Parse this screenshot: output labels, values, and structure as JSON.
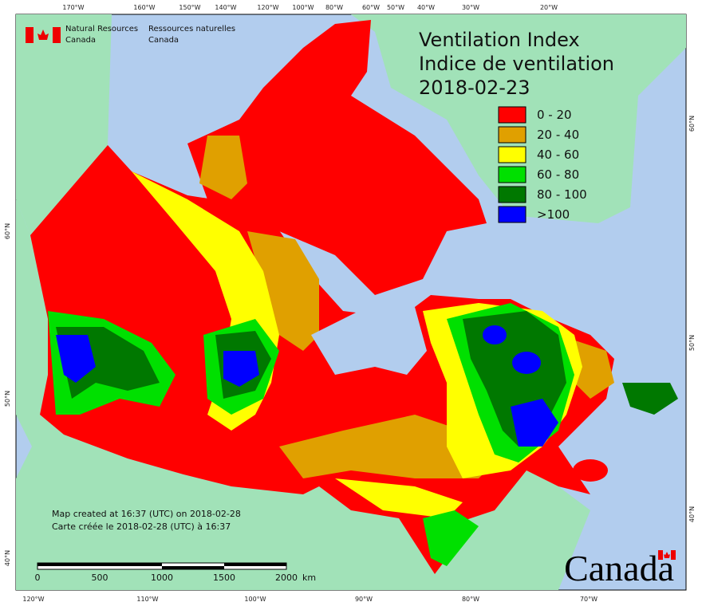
{
  "title": {
    "en": "Ventilation Index",
    "fr": "Indice de ventilation",
    "date": "2018-02-23"
  },
  "agency": {
    "en": [
      "Natural Resources",
      "Canada"
    ],
    "fr": [
      "Ressources naturelles",
      "Canada"
    ]
  },
  "legend": [
    {
      "label": "0 - 20",
      "color": "#ff0000"
    },
    {
      "label": "20 - 40",
      "color": "#e0a000"
    },
    {
      "label": "40 - 60",
      "color": "#ffff00"
    },
    {
      "label": "60 - 80",
      "color": "#00e000"
    },
    {
      "label": "80 - 100",
      "color": "#007800"
    },
    {
      "label": ">100",
      "color": "#0000ff"
    }
  ],
  "credits": [
    "Map created at 16:37 (UTC) on 2018-02-28",
    "Carte créée le 2018-02-28 (UTC) à 16:37"
  ],
  "scale_bar": {
    "ticks": [
      "0",
      "500",
      "1000",
      "1500",
      "2000"
    ],
    "unit": "km"
  },
  "graticule": {
    "top": [
      "170°W",
      "160°W",
      "150°W",
      "140°W",
      "120°W",
      "100°W",
      "80°W",
      "60°W",
      "50°W",
      "40°W",
      "30°W",
      "20°W"
    ],
    "bottom": [
      "120°W",
      "110°W",
      "100°W",
      "90°W",
      "80°W",
      "70°W"
    ],
    "left": [
      "60°N",
      "50°N",
      "40°N"
    ],
    "right": [
      "60°N",
      "50°N",
      "40°N"
    ]
  },
  "wordmark": "Canada"
}
